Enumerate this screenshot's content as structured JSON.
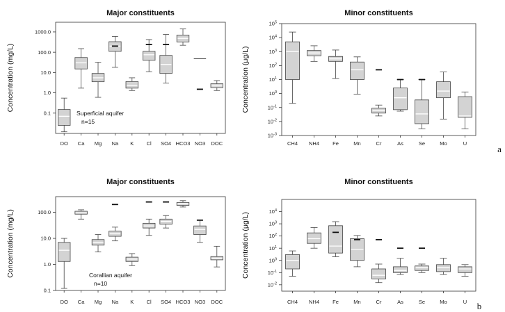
{
  "panel_labels": [
    "a",
    "b"
  ],
  "chart_data": [
    {
      "type": "boxplot",
      "title": "Major constituents",
      "ylabel": "Concentration (mg/L)",
      "scale": "log",
      "ylim": [
        0.01,
        3000
      ],
      "yticks": [
        0.1,
        1,
        10,
        100,
        1000
      ],
      "ytick_labels": [
        "0.1",
        "1.0",
        "10.0",
        "100.0",
        "1000.0"
      ],
      "categories": [
        "DO",
        "Ca",
        "Mg",
        "Na",
        "K",
        "Cl",
        "SO4",
        "HCO3",
        "NO3",
        "DOC"
      ],
      "boxes": [
        {
          "wl": 0.012,
          "q1": 0.025,
          "med": 0.07,
          "q3": 0.15,
          "wh": 0.55
        },
        {
          "wl": 1.7,
          "q1": 15,
          "med": 30,
          "q3": 55,
          "wh": 150
        },
        {
          "wl": 0.6,
          "q1": 3.5,
          "med": 5.5,
          "q3": 9,
          "wh": 32
        },
        {
          "wl": 18,
          "q1": 110,
          "med": 200,
          "q3": 330,
          "wh": 600
        },
        {
          "wl": 1.3,
          "q1": 1.7,
          "med": 2.3,
          "q3": 3.6,
          "wh": 5.5
        },
        {
          "wl": 11,
          "q1": 40,
          "med": 75,
          "q3": 110,
          "wh": 420
        },
        {
          "wl": 3,
          "q1": 9,
          "med": 25,
          "q3": 70,
          "wh": 750
        },
        {
          "wl": 220,
          "q1": 320,
          "med": 480,
          "q3": 700,
          "wh": 1400
        },
        {
          "wl": null,
          "q1": null,
          "med": 48,
          "q3": null,
          "wh": null
        },
        {
          "wl": 1.3,
          "q1": 1.8,
          "med": 2.2,
          "q3": 2.8,
          "wh": 4
        }
      ],
      "extra_marks": [
        {
          "category": "Na",
          "value": 200
        },
        {
          "category": "Cl",
          "value": 240
        },
        {
          "category": "SO4",
          "value": 240
        },
        {
          "category": "NO3",
          "value": 1.5
        }
      ],
      "annotations": [
        "Superficial aquifer",
        "n=15"
      ]
    },
    {
      "type": "boxplot",
      "title": "Minor constituents",
      "ylabel": "Concentration (μg/L)",
      "scale": "log",
      "ylim": [
        0.001,
        100000
      ],
      "yticks": [
        0.001,
        0.01,
        0.1,
        1,
        10,
        100,
        1000,
        10000,
        100000
      ],
      "ytick_labels": [
        "10^-3",
        "10^-2",
        "10^-1",
        "10^0",
        "10^1",
        "10^2",
        "10^3",
        "10^4",
        "10^5"
      ],
      "categories": [
        "CH4",
        "NH4",
        "Fe",
        "Mn",
        "Cr",
        "As",
        "Se",
        "Mo",
        "U"
      ],
      "boxes": [
        {
          "wl": 0.2,
          "q1": 10,
          "med": 1000,
          "q3": 5000,
          "wh": 25000
        },
        {
          "wl": 200,
          "q1": 500,
          "med": 800,
          "q3": 1200,
          "wh": 2600
        },
        {
          "wl": 12,
          "q1": 200,
          "med": 300,
          "q3": 450,
          "wh": 1300
        },
        {
          "wl": 0.9,
          "q1": 10,
          "med": 50,
          "q3": 180,
          "wh": 420
        },
        {
          "wl": 0.025,
          "q1": 0.04,
          "med": 0.06,
          "q3": 0.09,
          "wh": 0.15
        },
        {
          "wl": 0.055,
          "q1": 0.07,
          "med": 0.5,
          "q3": 2.5,
          "wh": 10
        },
        {
          "wl": 0.003,
          "q1": 0.007,
          "med": 0.035,
          "q3": 0.35,
          "wh": 10
        },
        {
          "wl": 0.015,
          "q1": 0.5,
          "med": 1.5,
          "q3": 7,
          "wh": 35
        },
        {
          "wl": 0.003,
          "q1": 0.02,
          "med": 0.025,
          "q3": 0.6,
          "wh": 1.3
        }
      ],
      "extra_marks": [
        {
          "category": "Cr",
          "value": 50
        },
        {
          "category": "As",
          "value": 10
        },
        {
          "category": "Se",
          "value": 10
        }
      ]
    },
    {
      "type": "boxplot",
      "title": "Major constituents",
      "ylabel": "Concentration (mg/L)",
      "scale": "log",
      "ylim": [
        0.1,
        400
      ],
      "yticks": [
        0.1,
        1,
        10,
        100
      ],
      "ytick_labels": [
        "0.1",
        "1.0",
        "10.0",
        "100.0"
      ],
      "categories": [
        "DO",
        "Ca",
        "Mg",
        "Na",
        "K",
        "Cl",
        "SO4",
        "HCO3",
        "NO3",
        "DOC"
      ],
      "boxes": [
        {
          "wl": 0.12,
          "q1": 1.3,
          "med": 3.5,
          "q3": 7,
          "wh": 10
        },
        {
          "wl": 55,
          "q1": 85,
          "med": 95,
          "q3": 110,
          "wh": 125
        },
        {
          "wl": 3,
          "q1": 5.5,
          "med": 7,
          "q3": 9,
          "wh": 14
        },
        {
          "wl": 8,
          "q1": 12,
          "med": 15,
          "q3": 19,
          "wh": 27
        },
        {
          "wl": 0.9,
          "q1": 1.3,
          "med": 1.6,
          "q3": 1.9,
          "wh": 2.6
        },
        {
          "wl": 13,
          "q1": 25,
          "med": 30,
          "q3": 38,
          "wh": 55
        },
        {
          "wl": 25,
          "q1": 35,
          "med": 45,
          "q3": 55,
          "wh": 75
        },
        {
          "wl": 160,
          "q1": 185,
          "med": 215,
          "q3": 240,
          "wh": 280
        },
        {
          "wl": 7,
          "q1": 14,
          "med": 22,
          "q3": 30,
          "wh": 50
        },
        {
          "wl": 0.8,
          "q1": 1.5,
          "med": 1.7,
          "q3": 2,
          "wh": 5
        }
      ],
      "extra_marks": [
        {
          "category": "Na",
          "value": 200
        },
        {
          "category": "Cl",
          "value": 250
        },
        {
          "category": "SO4",
          "value": 250
        },
        {
          "category": "NO3",
          "value": 50
        }
      ],
      "annotations": [
        "Corallian aquifer",
        "n=10"
      ]
    },
    {
      "type": "boxplot",
      "title": "Minor constituents",
      "ylabel": "Concentration (μg/L)",
      "scale": "log",
      "ylim": [
        0.003,
        100000
      ],
      "yticks": [
        0.01,
        0.1,
        1,
        10,
        100,
        1000,
        10000
      ],
      "ytick_labels": [
        "10^-2",
        "10^-1",
        "10^0",
        "10^1",
        "10^2",
        "10^3",
        "10^4"
      ],
      "categories": [
        "CH4",
        "NH4",
        "Fe",
        "Mn",
        "Cr",
        "As",
        "Se",
        "Mo",
        "U"
      ],
      "boxes": [
        {
          "wl": 0.05,
          "q1": 0.2,
          "med": 1,
          "q3": 3,
          "wh": 6
        },
        {
          "wl": 10,
          "q1": 25,
          "med": 60,
          "q3": 180,
          "wh": 500
        },
        {
          "wl": 2,
          "q1": 4,
          "med": 15,
          "q3": 700,
          "wh": 1500
        },
        {
          "wl": 0.3,
          "q1": 1,
          "med": 8,
          "q3": 60,
          "wh": 110
        },
        {
          "wl": 0.015,
          "q1": 0.03,
          "med": 0.06,
          "q3": 0.2,
          "wh": 0.5
        },
        {
          "wl": 0.07,
          "q1": 0.1,
          "med": 0.15,
          "q3": 0.3,
          "wh": 1.5
        },
        {
          "wl": 0.1,
          "q1": 0.15,
          "med": 0.25,
          "q3": 0.35,
          "wh": 0.5
        },
        {
          "wl": 0.07,
          "q1": 0.12,
          "med": 0.25,
          "q3": 0.45,
          "wh": 1.5
        },
        {
          "wl": 0.05,
          "q1": 0.1,
          "med": 0.2,
          "q3": 0.3,
          "wh": 0.45
        }
      ],
      "extra_marks": [
        {
          "category": "Fe",
          "value": 200
        },
        {
          "category": "Mn",
          "value": 50
        },
        {
          "category": "Cr",
          "value": 50
        },
        {
          "category": "As",
          "value": 10
        },
        {
          "category": "Se",
          "value": 10
        }
      ]
    }
  ]
}
